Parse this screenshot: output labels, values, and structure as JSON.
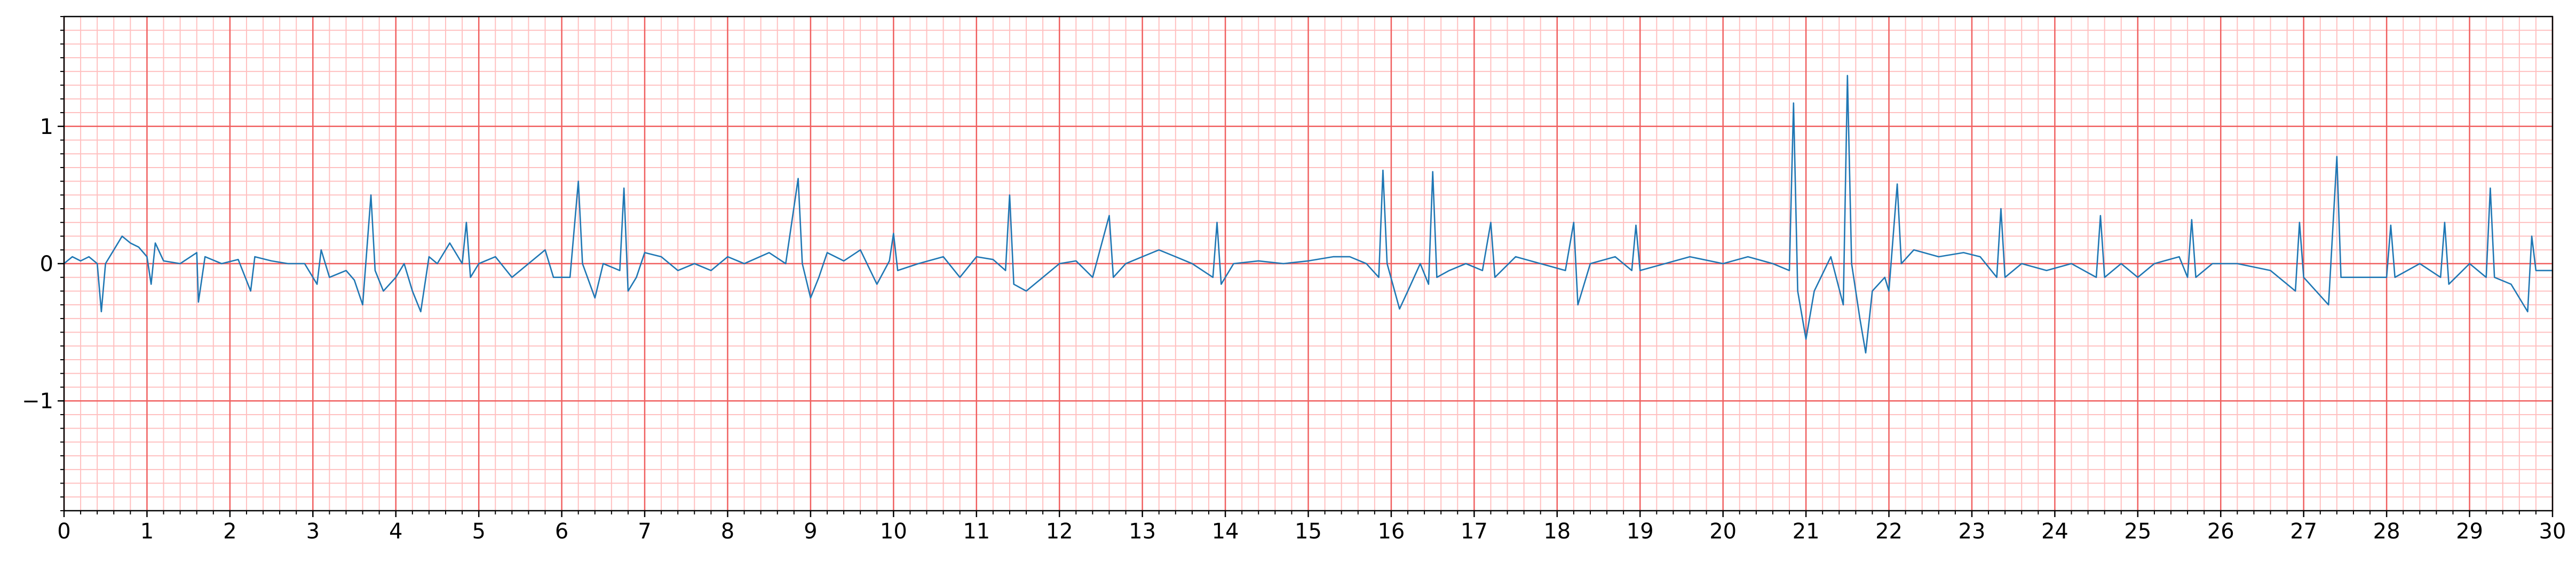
{
  "chart_data": {
    "type": "line",
    "color": "#1f77b4",
    "x": [
      0,
      0.1,
      0.2,
      0.3,
      0.4,
      0.45,
      0.5,
      0.6,
      0.7,
      0.8,
      0.9,
      1.0,
      1.05,
      1.1,
      1.2,
      1.4,
      1.6,
      1.62,
      1.7,
      1.9,
      2.1,
      2.25,
      2.3,
      2.5,
      2.7,
      2.9,
      3.05,
      3.1,
      3.2,
      3.4,
      3.5,
      3.6,
      3.7,
      3.75,
      3.85,
      4.0,
      4.1,
      4.2,
      4.3,
      4.4,
      4.5,
      4.65,
      4.8,
      4.85,
      4.9,
      5.0,
      5.2,
      5.4,
      5.6,
      5.8,
      5.9,
      6.1,
      6.2,
      6.25,
      6.4,
      6.5,
      6.7,
      6.75,
      6.8,
      6.9,
      7.0,
      7.2,
      7.4,
      7.6,
      7.8,
      8.0,
      8.2,
      8.5,
      8.7,
      8.85,
      8.9,
      9.0,
      9.1,
      9.2,
      9.4,
      9.6,
      9.8,
      9.95,
      10.0,
      10.05,
      10.3,
      10.6,
      10.8,
      11.0,
      11.2,
      11.35,
      11.4,
      11.45,
      11.6,
      11.8,
      12.0,
      12.2,
      12.4,
      12.6,
      12.65,
      12.8,
      13.0,
      13.2,
      13.4,
      13.6,
      13.85,
      13.9,
      13.95,
      14.1,
      14.4,
      14.7,
      15.0,
      15.3,
      15.5,
      15.7,
      15.85,
      15.9,
      15.95,
      16.1,
      16.2,
      16.35,
      16.45,
      16.5,
      16.55,
      16.7,
      16.9,
      17.1,
      17.2,
      17.25,
      17.5,
      17.8,
      18.1,
      18.2,
      18.25,
      18.4,
      18.7,
      18.9,
      18.95,
      19.0,
      19.3,
      19.6,
      20.0,
      20.3,
      20.6,
      20.8,
      20.85,
      20.9,
      21.0,
      21.1,
      21.3,
      21.45,
      21.5,
      21.55,
      21.65,
      21.72,
      21.8,
      21.95,
      22.0,
      22.1,
      22.15,
      22.3,
      22.6,
      22.9,
      23.1,
      23.3,
      23.35,
      23.4,
      23.6,
      23.9,
      24.2,
      24.5,
      24.55,
      24.6,
      24.8,
      25.0,
      25.2,
      25.5,
      25.6,
      25.65,
      25.7,
      25.9,
      26.2,
      26.6,
      26.9,
      26.95,
      27.0,
      27.3,
      27.4,
      27.45,
      27.7,
      28.0,
      28.05,
      28.1,
      28.4,
      28.65,
      28.7,
      28.75,
      29.0,
      29.2,
      29.25,
      29.3,
      29.5,
      29.7,
      29.75,
      29.8,
      30.0
    ],
    "values": [
      0,
      0.05,
      0.02,
      0.05,
      0,
      -0.35,
      0,
      0.1,
      0.2,
      0.15,
      0.12,
      0.05,
      -0.15,
      0.15,
      0.02,
      0,
      0.08,
      -0.28,
      0.05,
      0,
      0.03,
      -0.2,
      0.05,
      0.02,
      0,
      0,
      -0.15,
      0.1,
      -0.1,
      -0.05,
      -0.12,
      -0.3,
      0.5,
      -0.05,
      -0.2,
      -0.1,
      0,
      -0.2,
      -0.35,
      0.05,
      0,
      0.15,
      0,
      0.3,
      -0.1,
      0,
      0.05,
      -0.1,
      0,
      0.1,
      -0.1,
      -0.1,
      0.6,
      0,
      -0.25,
      0,
      -0.05,
      0.55,
      -0.2,
      -0.1,
      0.08,
      0.05,
      -0.05,
      0,
      -0.05,
      0.05,
      0,
      0.08,
      0,
      0.62,
      0,
      -0.25,
      -0.1,
      0.08,
      0.02,
      0.1,
      -0.15,
      0.02,
      0.22,
      -0.05,
      0,
      0.05,
      -0.1,
      0.05,
      0.03,
      -0.05,
      0.5,
      -0.15,
      -0.2,
      -0.1,
      0,
      0.02,
      -0.1,
      0.35,
      -0.1,
      0,
      0.05,
      0.1,
      0.05,
      0,
      -0.1,
      0.3,
      -0.15,
      0,
      0.02,
      0,
      0.02,
      0.05,
      0.05,
      0,
      -0.1,
      0.68,
      0,
      -0.33,
      -0.2,
      0,
      -0.15,
      0.67,
      -0.1,
      -0.05,
      0,
      -0.05,
      0.3,
      -0.1,
      0.05,
      0,
      -0.05,
      0.3,
      -0.3,
      0,
      0.05,
      -0.05,
      0.28,
      -0.05,
      0,
      0.05,
      0,
      0.05,
      0,
      -0.05,
      1.17,
      -0.2,
      -0.55,
      -0.2,
      0.05,
      -0.3,
      1.37,
      0,
      -0.4,
      -0.65,
      -0.2,
      -0.1,
      -0.2,
      0.58,
      0,
      0.1,
      0.05,
      0.08,
      0.05,
      -0.1,
      0.4,
      -0.1,
      0,
      -0.05,
      0,
      -0.1,
      0.35,
      -0.1,
      0,
      -0.1,
      0,
      0.05,
      -0.1,
      0.32,
      -0.1,
      0,
      0,
      -0.05,
      -0.2,
      0.3,
      -0.1,
      -0.3,
      0.78,
      -0.1,
      -0.1,
      -0.1,
      0.28,
      -0.1,
      0,
      -0.1,
      0.3,
      -0.15,
      0,
      -0.1,
      0.55,
      -0.1,
      -0.15,
      -0.35,
      0.2,
      -0.05,
      -0.05
    ],
    "xlim": [
      0,
      30
    ],
    "ylim": [
      -1.8,
      1.8
    ],
    "xticks": [
      0,
      1,
      2,
      3,
      4,
      5,
      6,
      7,
      8,
      9,
      10,
      11,
      12,
      13,
      14,
      15,
      16,
      17,
      18,
      19,
      20,
      21,
      22,
      23,
      24,
      25,
      26,
      27,
      28,
      29,
      30
    ],
    "yticks": [
      {
        "value": -1,
        "label": "−1"
      },
      0,
      1
    ],
    "grid": true,
    "xminor": 0.2,
    "yminor": 0.1
  }
}
